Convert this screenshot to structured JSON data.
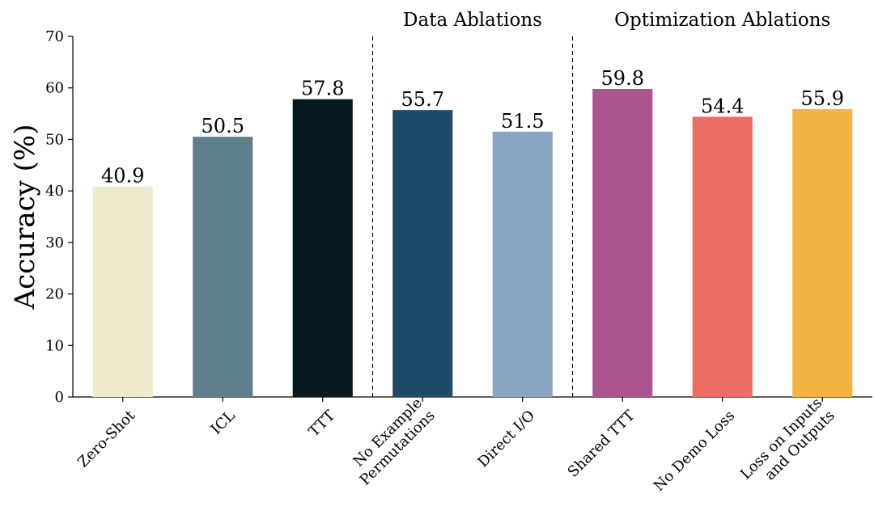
{
  "chart_data": {
    "type": "bar",
    "ylabel": "Accuracy (%)",
    "ylim": [
      0,
      70
    ],
    "yticks": [
      0,
      10,
      20,
      30,
      40,
      50,
      60,
      70
    ],
    "grid": false,
    "categories": [
      [
        "Zero-Shot"
      ],
      [
        "ICL"
      ],
      [
        "TTT"
      ],
      [
        "No Example",
        "Permutations"
      ],
      [
        "Direct I/O"
      ],
      [
        "Shared TTT"
      ],
      [
        "No Demo Loss"
      ],
      [
        "Loss on Inputs",
        "and Outputs"
      ]
    ],
    "values": [
      40.9,
      50.5,
      57.8,
      55.7,
      51.5,
      59.8,
      54.4,
      55.9
    ],
    "value_labels": [
      "40.9",
      "50.5",
      "57.8",
      "55.7",
      "51.5",
      "59.8",
      "54.4",
      "55.9"
    ],
    "colors": [
      "#efebcf",
      "#5f7f8c",
      "#08181f",
      "#1f4b69",
      "#8aa4c2",
      "#ac558e",
      "#ec6d64",
      "#f3b444"
    ],
    "groups": [
      {
        "label": "Data Ablations",
        "start": 3,
        "end": 4
      },
      {
        "label": "Optimization Ablations",
        "start": 5,
        "end": 7
      }
    ],
    "separators_after": [
      2,
      4
    ]
  }
}
